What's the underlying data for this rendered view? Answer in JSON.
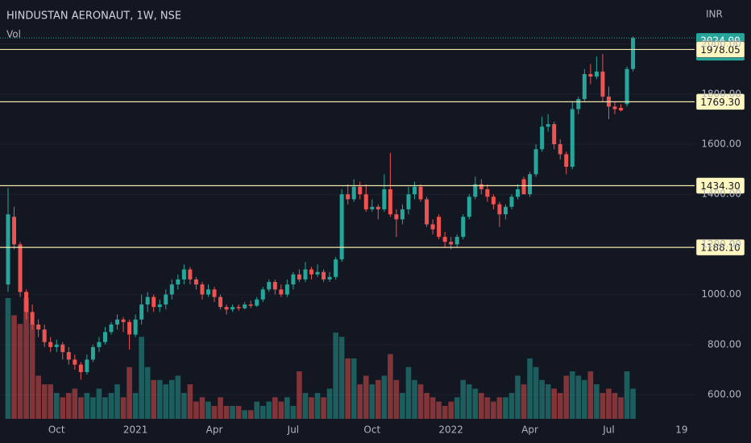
{
  "chart_data": {
    "type": "candlestick",
    "title": "HINDUSTAN AERONAUT, 1W, NSE",
    "volume_label": "Vol",
    "currency": "INR",
    "up_color": "#26a69a",
    "down_color": "#ef5350",
    "volume_up_color": "rgba(38,166,154,0.5)",
    "volume_down_color": "rgba(239,83,80,0.5)",
    "level_color": "#f3e6a8",
    "categories": [
      null,
      null,
      null,
      null,
      null,
      null,
      null,
      null,
      "Oct",
      null,
      null,
      null,
      null,
      null,
      null,
      null,
      null,
      null,
      null,
      null,
      null,
      "2021",
      null,
      null,
      null,
      null,
      null,
      null,
      null,
      null,
      null,
      null,
      null,
      null,
      "Apr",
      null,
      null,
      null,
      null,
      null,
      null,
      null,
      null,
      null,
      null,
      null,
      null,
      "Jul",
      null,
      null,
      null,
      null,
      null,
      null,
      null,
      null,
      null,
      null,
      null,
      null,
      "Oct",
      null,
      null,
      null,
      null,
      null,
      null,
      null,
      null,
      null,
      null,
      null,
      null,
      "2022",
      null,
      null,
      null,
      null,
      null,
      null,
      null,
      null,
      null,
      null,
      null,
      null,
      "Apr",
      null,
      null,
      null,
      null,
      null,
      null,
      null,
      null,
      null,
      null,
      null,
      null,
      "Jul",
      null,
      null,
      null,
      null,
      null,
      null,
      null,
      null,
      null,
      null,
      null,
      "19"
    ],
    "open": [
      1040,
      1310,
      1200,
      1010,
      930,
      880,
      860,
      810,
      790,
      800,
      770,
      740,
      720,
      690,
      740,
      790,
      810,
      850,
      880,
      900,
      890,
      840,
      900,
      960,
      990,
      950,
      960,
      1000,
      1040,
      1060,
      1100,
      1060,
      1040,
      1000,
      1020,
      990,
      950,
      940,
      950,
      945,
      960,
      955,
      980,
      1020,
      1050,
      1020,
      1000,
      1040,
      1080,
      1060,
      1100,
      1080,
      1090,
      1060,
      1070,
      1140,
      1400,
      1380,
      1430,
      1400,
      1340,
      1350,
      1340,
      1420,
      1320,
      1300,
      1340,
      1400,
      1430,
      1380,
      1280,
      1310,
      1230,
      1210,
      1200,
      1230,
      1310,
      1390,
      1440,
      1420,
      1390,
      1360,
      1320,
      1350,
      1390,
      1460,
      1400,
      1480,
      1580,
      1670,
      1680,
      1600,
      1560,
      1510,
      1740,
      1780,
      1880,
      1870,
      1890,
      1790,
      1750,
      1745,
      1760,
      1900,
      null,
      null,
      null,
      null,
      null,
      null,
      null,
      null
    ],
    "high": [
      1425,
      1350,
      1210,
      1020,
      960,
      900,
      880,
      830,
      820,
      810,
      790,
      760,
      730,
      760,
      800,
      830,
      870,
      890,
      920,
      910,
      900,
      920,
      1000,
      1010,
      1000,
      980,
      1020,
      1060,
      1080,
      1120,
      1110,
      1070,
      1050,
      1040,
      1030,
      1000,
      960,
      960,
      960,
      970,
      975,
      990,
      1030,
      1060,
      1060,
      1040,
      1060,
      1090,
      1100,
      1130,
      1110,
      1120,
      1100,
      1090,
      1150,
      1420,
      1440,
      1460,
      1450,
      1440,
      1380,
      1360,
      1480,
      1565,
      1340,
      1360,
      1430,
      1450,
      1440,
      1390,
      1300,
      1320,
      1250,
      1230,
      1240,
      1320,
      1400,
      1470,
      1460,
      1440,
      1400,
      1370,
      1360,
      1400,
      1440,
      1470,
      1490,
      1600,
      1710,
      1720,
      1690,
      1620,
      1570,
      1770,
      1790,
      1900,
      1920,
      1950,
      1960,
      1830,
      1770,
      1760,
      1910,
      2030,
      null,
      null,
      null,
      null,
      null,
      null,
      null,
      null
    ],
    "low": [
      1010,
      1180,
      990,
      900,
      860,
      830,
      790,
      770,
      770,
      740,
      720,
      700,
      660,
      680,
      730,
      770,
      800,
      840,
      860,
      850,
      780,
      830,
      880,
      930,
      930,
      930,
      940,
      980,
      1020,
      1040,
      1040,
      1020,
      980,
      990,
      970,
      940,
      920,
      930,
      935,
      940,
      945,
      950,
      970,
      1010,
      1000,
      990,
      990,
      1020,
      1050,
      1050,
      1060,
      1070,
      1050,
      1050,
      1060,
      1130,
      1360,
      1370,
      1380,
      1330,
      1330,
      1300,
      1330,
      1310,
      1230,
      1280,
      1320,
      1380,
      1370,
      1270,
      1240,
      1220,
      1190,
      1180,
      1190,
      1220,
      1300,
      1380,
      1400,
      1370,
      1340,
      1270,
      1300,
      1340,
      1380,
      1400,
      1390,
      1470,
      1570,
      1650,
      1580,
      1540,
      1480,
      1500,
      1720,
      1770,
      1840,
      1860,
      1770,
      1700,
      1720,
      1730,
      1750,
      1890,
      null,
      null,
      null,
      null,
      null,
      null,
      null,
      null
    ],
    "close": [
      1320,
      1200,
      1010,
      930,
      880,
      860,
      810,
      790,
      800,
      770,
      740,
      720,
      690,
      740,
      790,
      810,
      850,
      880,
      900,
      890,
      840,
      900,
      960,
      990,
      950,
      960,
      1000,
      1040,
      1060,
      1100,
      1060,
      1040,
      1000,
      1020,
      990,
      950,
      940,
      950,
      945,
      960,
      955,
      980,
      1020,
      1050,
      1020,
      1000,
      1040,
      1080,
      1060,
      1100,
      1080,
      1090,
      1060,
      1070,
      1140,
      1400,
      1380,
      1430,
      1400,
      1340,
      1350,
      1340,
      1420,
      1320,
      1300,
      1340,
      1400,
      1430,
      1380,
      1280,
      1260,
      1230,
      1210,
      1200,
      1230,
      1310,
      1390,
      1440,
      1420,
      1390,
      1360,
      1320,
      1350,
      1390,
      1420,
      1400,
      1480,
      1580,
      1670,
      1680,
      1600,
      1560,
      1510,
      1740,
      1780,
      1880,
      1870,
      1890,
      1790,
      1750,
      1740,
      1735,
      1900,
      2024,
      null,
      null,
      null,
      null,
      null,
      null,
      null,
      null
    ],
    "volume": [
      140,
      120,
      110,
      140,
      110,
      50,
      40,
      40,
      30,
      25,
      30,
      35,
      25,
      30,
      25,
      35,
      25,
      30,
      40,
      25,
      60,
      30,
      95,
      60,
      45,
      45,
      40,
      45,
      50,
      30,
      40,
      20,
      25,
      20,
      15,
      25,
      15,
      15,
      15,
      10,
      10,
      20,
      15,
      20,
      25,
      20,
      25,
      15,
      55,
      30,
      25,
      30,
      25,
      35,
      100,
      95,
      70,
      70,
      40,
      50,
      40,
      45,
      50,
      75,
      45,
      30,
      60,
      45,
      40,
      30,
      25,
      20,
      15,
      20,
      25,
      45,
      40,
      35,
      30,
      25,
      20,
      25,
      25,
      30,
      50,
      40,
      70,
      60,
      45,
      40,
      35,
      30,
      50,
      55,
      50,
      45,
      55,
      40,
      30,
      35,
      30,
      25,
      55,
      35,
      null,
      null,
      null,
      null,
      null,
      null,
      null,
      null
    ],
    "ylim": [
      503.5,
      2175.6
    ],
    "yticks": [
      {
        "value": 600,
        "label": "600.00"
      },
      {
        "value": 800,
        "label": "800.00"
      },
      {
        "value": 1000,
        "label": "1000.00"
      },
      {
        "value": 1200,
        "label": "1200.00"
      },
      {
        "value": 1400,
        "label": "1400.00"
      },
      {
        "value": 1600,
        "label": "1600.00"
      },
      {
        "value": 1800,
        "label": "1800.00"
      },
      {
        "value": 2000,
        "label": "2000.00"
      }
    ],
    "last_price_label": "2024.00",
    "levels": [
      1978.05,
      {
        "value": 1769.3,
        "label": "1769.30"
      },
      {
        "value": 1434.3,
        "label": "1434.30"
      },
      {
        "value": 1188.1,
        "label": "1188.10"
      }
    ]
  }
}
